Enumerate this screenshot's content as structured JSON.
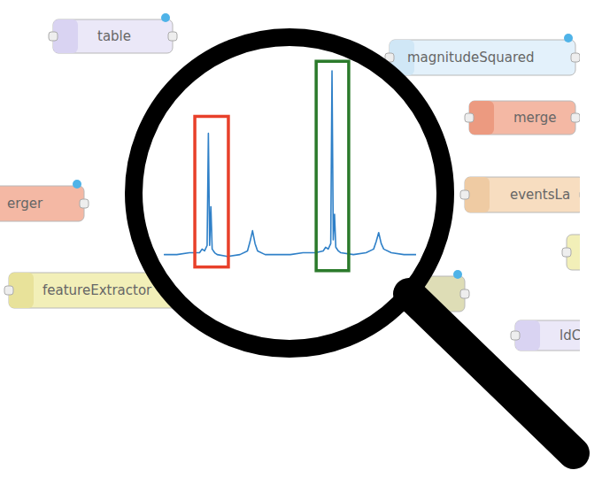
{
  "nodes": [
    {
      "label": "table"
    },
    {
      "label": "magnitudeSquared"
    },
    {
      "label": "merge"
    },
    {
      "label": "erger"
    },
    {
      "label": "eventsLa"
    },
    {
      "label": "featureExtractor"
    },
    {
      "label": "ldC"
    }
  ],
  "chart_data": {
    "type": "line",
    "color": "#2f80c8",
    "tick_labels": false,
    "xlim": [
      0,
      100
    ],
    "ylim": [
      -0.12,
      1.08
    ],
    "x": [
      0,
      5,
      10,
      14,
      15,
      16,
      17,
      17.5,
      18,
      18.5,
      19,
      20,
      21,
      25,
      30,
      33,
      34,
      35,
      36,
      37,
      40,
      45,
      50,
      55,
      60,
      63,
      64,
      65,
      66,
      66.5,
      67,
      67.5,
      68,
      69,
      70,
      75,
      80,
      83,
      84,
      85,
      86,
      87,
      90,
      95,
      100
    ],
    "values": [
      0.0,
      0.0,
      0.01,
      0.01,
      0.03,
      0.02,
      0.05,
      0.66,
      0.05,
      0.26,
      0.03,
      0.01,
      0.0,
      -0.01,
      0.0,
      0.02,
      0.07,
      0.13,
      0.06,
      0.02,
      0.0,
      0.0,
      0.0,
      0.01,
      0.01,
      0.02,
      0.04,
      0.03,
      0.06,
      1.0,
      0.08,
      0.22,
      0.04,
      0.02,
      0.01,
      0.0,
      0.01,
      0.03,
      0.07,
      0.12,
      0.06,
      0.03,
      0.01,
      0.0,
      0.0
    ],
    "highlights": [
      {
        "xlim": [
          12.3,
          25.6
        ],
        "ylim": [
          -0.07,
          0.75
        ],
        "color": "#e8402a"
      },
      {
        "xlim": [
          60.4,
          73.3
        ],
        "ylim": [
          -0.09,
          1.05
        ],
        "color": "#2b7a2b"
      }
    ]
  }
}
